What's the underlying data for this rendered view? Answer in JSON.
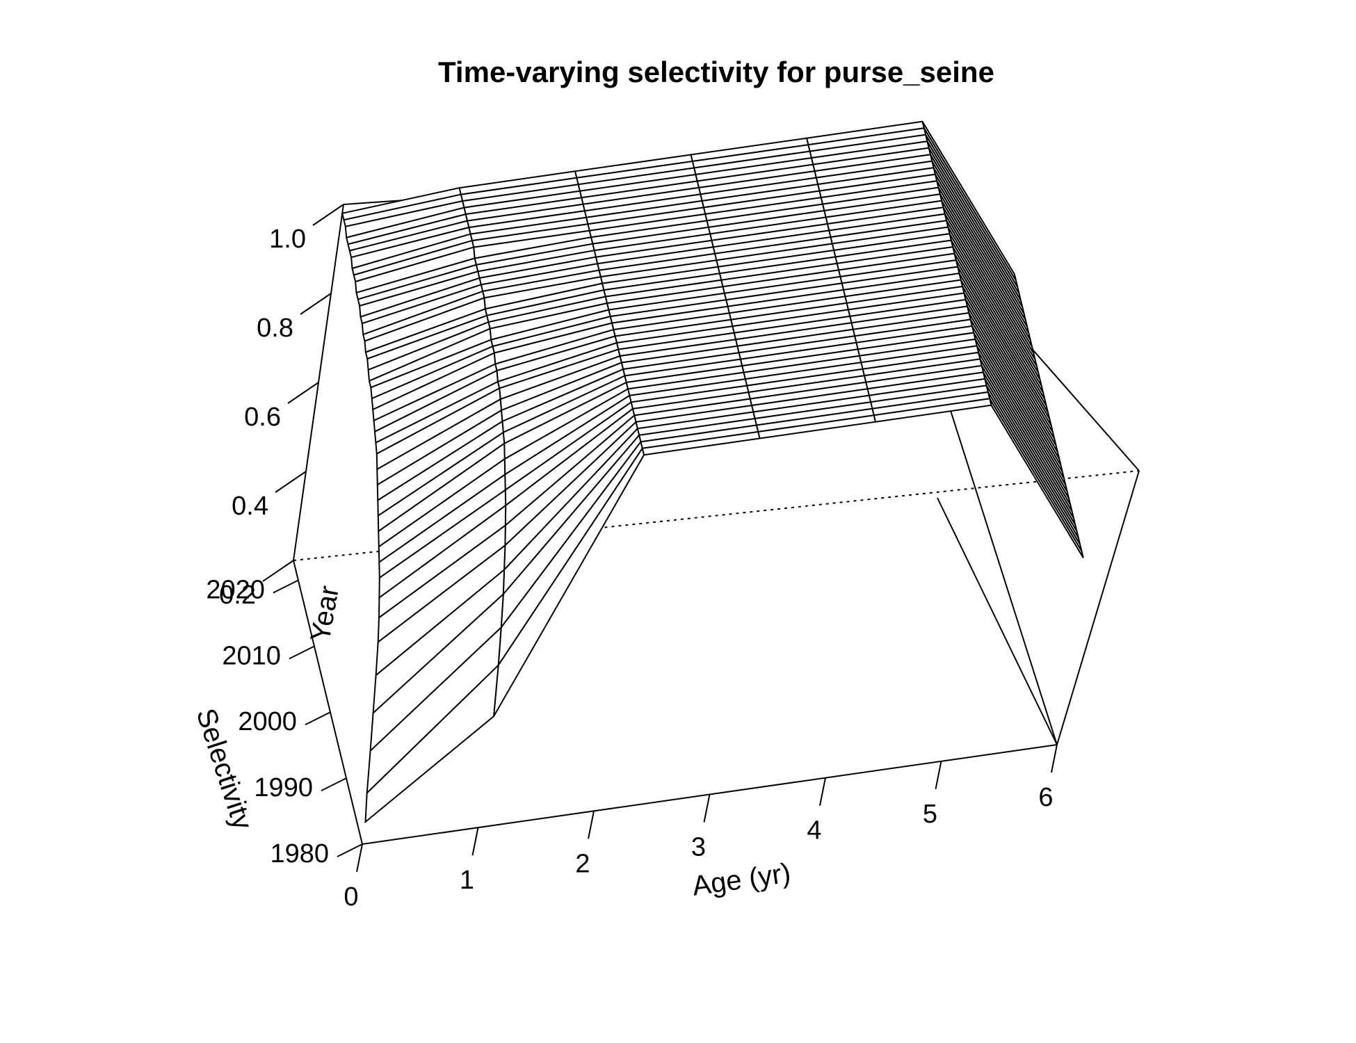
{
  "chart_data": {
    "type": "surface",
    "title": "Time-varying selectivity for purse_seine",
    "xlabel": "Age (yr)",
    "ylabel": "Year",
    "zlabel": "Selectivity",
    "x": [
      0,
      1,
      2,
      3,
      4,
      5,
      6
    ],
    "y_start": 1980,
    "y_end": 2023,
    "xlim": [
      0,
      6
    ],
    "ylim": [
      1980,
      2023
    ],
    "zlim": [
      0.2,
      1.0
    ],
    "x_ticks": [
      "0",
      "1",
      "2",
      "3",
      "4",
      "5",
      "6"
    ],
    "y_ticks": [
      "1980",
      "1990",
      "2000",
      "2010",
      "2020"
    ],
    "z_ticks": [
      "0.2",
      "0.4",
      "0.6",
      "0.8",
      "1.0"
    ],
    "z_values_by_age": [
      {
        "age": 0,
        "values_by_year": [
          0.25,
          0.3,
          0.38,
          0.45,
          0.52,
          0.58,
          0.62,
          0.65,
          0.68,
          0.7,
          0.72,
          0.74,
          0.76,
          0.78,
          0.8,
          0.82,
          0.84,
          0.85,
          0.86,
          0.87,
          0.88,
          0.89,
          0.9,
          0.9,
          0.91,
          0.92,
          0.92,
          0.93,
          0.93,
          0.94,
          0.94,
          0.95,
          0.95,
          0.95,
          0.96,
          0.96,
          0.96,
          0.97,
          0.97,
          0.97,
          0.97,
          0.98,
          0.98,
          0.98
        ]
      },
      {
        "age": 1,
        "values_by_year": [
          0.45,
          0.55,
          0.62,
          0.68,
          0.72,
          0.76,
          0.79,
          0.82,
          0.84,
          0.86,
          0.88,
          0.9,
          0.91,
          0.92,
          0.93,
          0.94,
          0.95,
          0.95,
          0.96,
          0.96,
          0.97,
          0.97,
          0.97,
          0.98,
          0.98,
          0.98,
          0.98,
          0.99,
          0.99,
          0.99,
          0.99,
          0.99,
          0.99,
          0.99,
          1.0,
          1.0,
          1.0,
          1.0,
          1.0,
          1.0,
          1.0,
          1.0,
          1.0,
          1.0
        ]
      },
      {
        "age": 2,
        "values": 1.0
      },
      {
        "age": 3,
        "values": 1.0
      },
      {
        "age": 4,
        "values": 1.0
      },
      {
        "age": 5,
        "values": 1.0
      },
      {
        "age": 6,
        "values": 0.62
      }
    ]
  }
}
